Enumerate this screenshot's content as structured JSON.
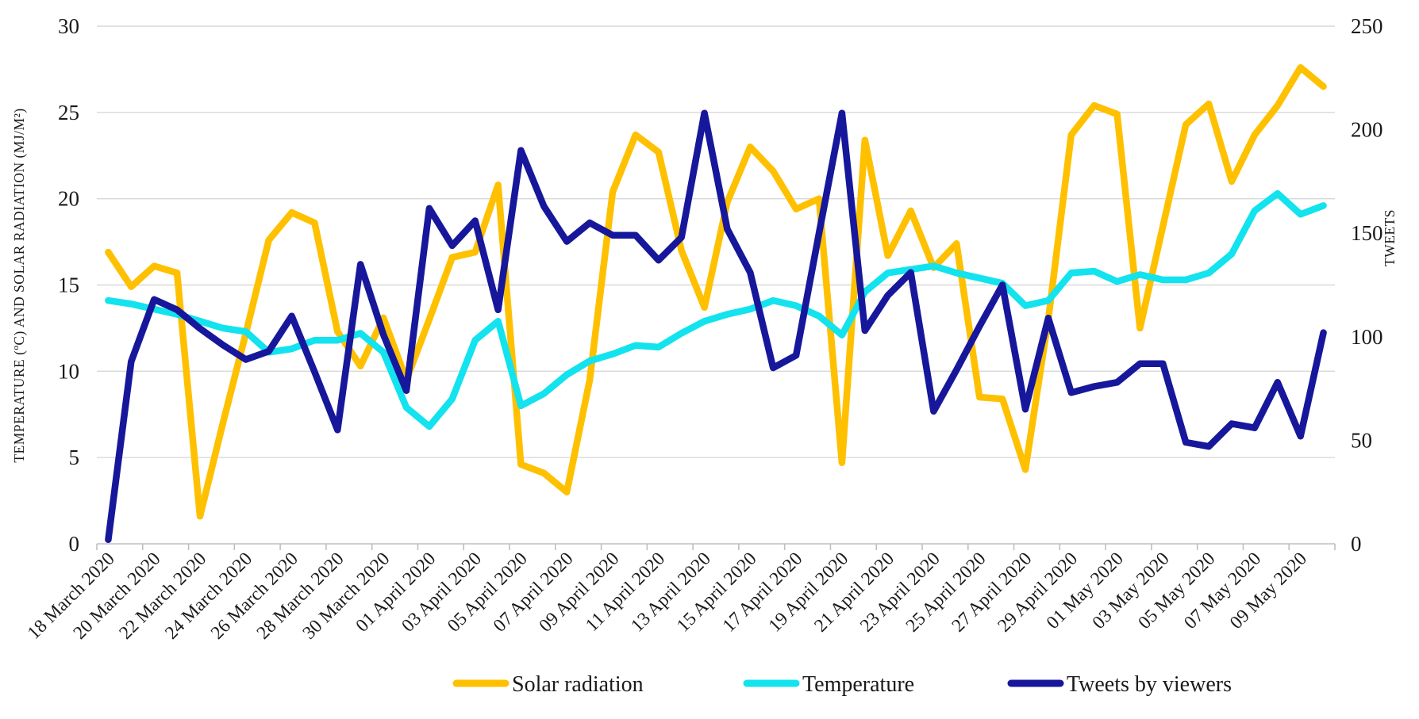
{
  "chart_data": {
    "type": "line",
    "title": "",
    "n_points": 54,
    "x_label_step": 2,
    "x_labels_visible": [
      "18 March 2020",
      "20 March 2020",
      "22 March 2020",
      "24 March 2020",
      "26 March 2020",
      "28 March 2020",
      "30 March 2020",
      "01 April 2020",
      "03 April 2020",
      "05 April 2020",
      "07 April 2020",
      "09 April 2020",
      "11 April 2020",
      "13 April 2020",
      "15 April 2020",
      "17 April 2020",
      "19 April 2020",
      "21 April 2020",
      "23 April 2020",
      "25 April 2020",
      "27 April 2020",
      "29 April 2020",
      "01 May 2020",
      "03 May 2020",
      "05 May 2020",
      "07 May 2020",
      "09 May 2020"
    ],
    "left_axis": {
      "label": "TEMPERATURE (ºC) AND SOLAR RADIATION (MJ/M²)",
      "min": 0,
      "max": 30,
      "step": 5,
      "ticks": [
        "0",
        "5",
        "10",
        "15",
        "20",
        "25",
        "30"
      ]
    },
    "right_axis": {
      "label": "TWEETS",
      "min": 0,
      "max": 250,
      "step": 50,
      "ticks": [
        "0",
        "50",
        "100",
        "150",
        "200",
        "250"
      ]
    },
    "series": [
      {
        "name": "Solar radiation",
        "axis": "left",
        "color": "#FFC000",
        "values": [
          16.9,
          14.9,
          16.1,
          15.7,
          1.6,
          7.0,
          12.2,
          17.6,
          19.2,
          18.6,
          12.3,
          10.3,
          13.1,
          9.5,
          13.0,
          16.6,
          16.9,
          20.8,
          4.6,
          4.1,
          3.0,
          9.5,
          20.4,
          23.7,
          22.7,
          17.0,
          13.7,
          19.8,
          23.0,
          21.6,
          19.4,
          20.0,
          4.7,
          23.4,
          16.7,
          19.3,
          16.0,
          17.4,
          8.5,
          8.4,
          4.3,
          13.0,
          23.7,
          25.4,
          24.9,
          12.5,
          18.4,
          24.3,
          25.5,
          21.0,
          23.7,
          25.4,
          27.6,
          26.5
        ]
      },
      {
        "name": "Temperature",
        "axis": "left",
        "color": "#12E3EE",
        "values": [
          14.1,
          13.9,
          13.6,
          13.3,
          12.9,
          12.5,
          12.3,
          11.1,
          11.3,
          11.8,
          11.8,
          12.2,
          11.1,
          7.9,
          6.8,
          8.4,
          11.8,
          12.9,
          8.0,
          8.7,
          9.8,
          10.6,
          11.0,
          11.5,
          11.4,
          12.2,
          12.9,
          13.3,
          13.6,
          14.1,
          13.8,
          13.2,
          12.1,
          14.6,
          15.7,
          15.9,
          16.1,
          15.7,
          15.4,
          15.1,
          13.8,
          14.1,
          15.7,
          15.8,
          15.2,
          15.6,
          15.3,
          15.3,
          15.7,
          16.8,
          19.3,
          20.3,
          19.1,
          19.6
        ]
      },
      {
        "name": "Tweets by viewers",
        "axis": "right",
        "color": "#17179B",
        "values": [
          2,
          88,
          118,
          113,
          104,
          96,
          89,
          93,
          110,
          83,
          55,
          135,
          101,
          74,
          162,
          144,
          156,
          113,
          190,
          163,
          146,
          155,
          149,
          149,
          137,
          148,
          208,
          152,
          131,
          85,
          91,
          150,
          208,
          103,
          120,
          131,
          64,
          84,
          105,
          125,
          65,
          109,
          73,
          76,
          78,
          87,
          87,
          49,
          47,
          58,
          56,
          78,
          52,
          102
        ]
      }
    ],
    "legend_position": "bottom",
    "grid": true,
    "gridline_color": "#D9D9D9",
    "axisline_color": "#BFBFBF",
    "text_color": "#1a1a1a",
    "background": "#FFFFFF"
  }
}
